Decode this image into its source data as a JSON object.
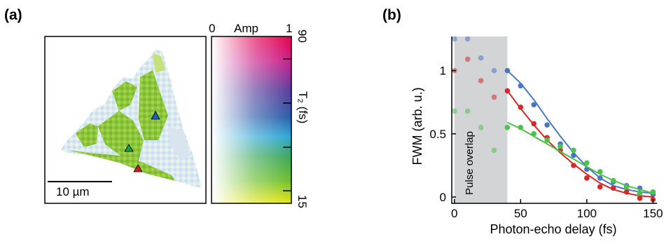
{
  "panel_a": {
    "label": "(a)",
    "scalebar_label": "10 µm",
    "colorbar": {
      "amp_min": "0",
      "amp_title": "Amp",
      "amp_max": "1",
      "t2_top": "90",
      "t2_bottom": "15",
      "t2_title": "T₂ (fs)"
    },
    "markers": [
      {
        "color": "#1f5fbf"
      },
      {
        "color": "#1f9a4a"
      },
      {
        "color": "#d42020"
      }
    ]
  },
  "panel_b": {
    "label": "(b)",
    "overlap_label": "Pulse overlap"
  },
  "chart_data": {
    "type": "scatter",
    "xlabel": "Photon-echo delay (fs)",
    "ylabel": "FWM (arb. u.)",
    "xlim": [
      -2,
      153
    ],
    "ylim": [
      -0.05,
      1.27
    ],
    "x_ticks": [
      "0",
      "50",
      "100",
      "150"
    ],
    "y_ticks": [
      "0",
      "0.5",
      "1"
    ],
    "shaded_region": [
      0,
      40
    ],
    "series": [
      {
        "color": "#4a76c4",
        "x": [
          0,
          10,
          20,
          30,
          40,
          50,
          60,
          70,
          80,
          90,
          100,
          110,
          120,
          130,
          140,
          150
        ],
        "y": [
          1.25,
          1.25,
          1.1,
          1.0,
          1.0,
          0.88,
          0.73,
          0.57,
          0.42,
          0.33,
          0.22,
          0.15,
          0.12,
          0.09,
          0.07,
          0.02
        ],
        "fit_x": [
          40,
          50,
          60,
          70,
          80,
          90,
          100,
          110,
          120,
          130,
          140,
          150
        ],
        "fit_y": [
          1.0,
          0.9,
          0.77,
          0.62,
          0.48,
          0.35,
          0.24,
          0.15,
          0.09,
          0.06,
          0.04,
          0.03
        ]
      },
      {
        "color": "#d42a2a",
        "x": [
          0,
          10,
          20,
          30,
          40,
          50,
          60,
          70,
          80,
          90,
          100,
          110,
          120,
          130,
          140,
          150
        ],
        "y": [
          1.0,
          1.09,
          0.92,
          0.79,
          0.84,
          0.71,
          0.58,
          0.47,
          0.37,
          0.25,
          0.15,
          0.08,
          0.07,
          0.04,
          -0.01,
          -0.02
        ],
        "fit_x": [
          40,
          50,
          60,
          70,
          80,
          90,
          100,
          110,
          120,
          130,
          140,
          150
        ],
        "fit_y": [
          0.84,
          0.7,
          0.57,
          0.45,
          0.35,
          0.26,
          0.18,
          0.11,
          0.06,
          0.03,
          0.01,
          0.0
        ]
      },
      {
        "color": "#4cc24c",
        "x": [
          0,
          10,
          20,
          30,
          40,
          50,
          60,
          70,
          80,
          90,
          100,
          110,
          120,
          130,
          140,
          150
        ],
        "y": [
          0.68,
          0.68,
          0.55,
          0.37,
          0.55,
          0.55,
          0.5,
          0.45,
          0.4,
          0.37,
          0.27,
          0.2,
          0.13,
          0.08,
          0.03,
          0.04
        ],
        "fit_x": [
          40,
          50,
          60,
          70,
          80,
          90,
          100,
          110,
          120,
          130,
          140,
          150
        ],
        "fit_y": [
          0.59,
          0.54,
          0.48,
          0.42,
          0.36,
          0.3,
          0.24,
          0.18,
          0.13,
          0.09,
          0.06,
          0.03
        ]
      }
    ]
  }
}
